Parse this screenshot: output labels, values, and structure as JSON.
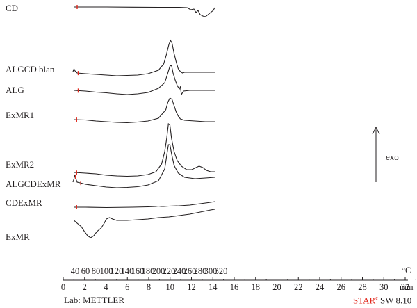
{
  "colors": {
    "ink": "#231f20",
    "marker": "#e0261b"
  },
  "chart_data": {
    "type": "line",
    "title": "",
    "y_direction_label": "exo",
    "temperature_axis": {
      "unit": "°C",
      "ticks": [
        40,
        60,
        80,
        100,
        120,
        140,
        160,
        180,
        200,
        220,
        240,
        260,
        280,
        300,
        320
      ],
      "range": [
        30,
        330
      ]
    },
    "time_axis": {
      "unit": "min",
      "ticks": [
        0,
        2,
        4,
        6,
        8,
        10,
        12,
        14,
        16,
        18,
        20,
        22,
        24,
        26,
        28,
        30,
        32
      ],
      "range": [
        0,
        33
      ]
    },
    "series": [
      {
        "name": "CD",
        "offset": 10,
        "points": [
          [
            38,
            0
          ],
          [
            60,
            0
          ],
          [
            100,
            0
          ],
          [
            150,
            -0.5
          ],
          [
            200,
            -1
          ],
          [
            225,
            -1
          ],
          [
            240,
            -1
          ],
          [
            255,
            -2
          ],
          [
            262,
            -8
          ],
          [
            268,
            -6
          ],
          [
            272,
            -16
          ],
          [
            276,
            -10
          ],
          [
            280,
            -22
          ],
          [
            285,
            -26
          ],
          [
            290,
            -28
          ],
          [
            295,
            -22
          ],
          [
            300,
            -16
          ],
          [
            305,
            -10
          ],
          [
            308,
            -2
          ]
        ]
      },
      {
        "name": "ALGCD blan",
        "offset": 104,
        "points": [
          [
            36,
            2
          ],
          [
            38,
            10
          ],
          [
            40,
            4
          ],
          [
            44,
            -2
          ],
          [
            60,
            -4
          ],
          [
            80,
            -6
          ],
          [
            100,
            -8
          ],
          [
            120,
            -10
          ],
          [
            140,
            -9
          ],
          [
            160,
            -8
          ],
          [
            180,
            -4
          ],
          [
            200,
            6
          ],
          [
            210,
            24
          ],
          [
            215,
            50
          ],
          [
            220,
            80
          ],
          [
            223,
            92
          ],
          [
            226,
            84
          ],
          [
            230,
            54
          ],
          [
            234,
            30
          ],
          [
            238,
            10
          ],
          [
            242,
            2
          ],
          [
            246,
            -2
          ],
          [
            250,
            0
          ],
          [
            270,
            0
          ],
          [
            300,
            0
          ],
          [
            308,
            0
          ]
        ]
      },
      {
        "name": "ALG",
        "offset": 130,
        "points": [
          [
            38,
            0
          ],
          [
            60,
            -2
          ],
          [
            80,
            -5
          ],
          [
            100,
            -7
          ],
          [
            120,
            -10
          ],
          [
            140,
            -12
          ],
          [
            160,
            -10
          ],
          [
            180,
            -6
          ],
          [
            200,
            6
          ],
          [
            212,
            22
          ],
          [
            218,
            50
          ],
          [
            222,
            70
          ],
          [
            225,
            72
          ],
          [
            228,
            50
          ],
          [
            232,
            30
          ],
          [
            236,
            14
          ],
          [
            240,
            4
          ],
          [
            242,
            10
          ],
          [
            244,
            -12
          ],
          [
            248,
            -2
          ],
          [
            260,
            0
          ],
          [
            280,
            0
          ],
          [
            300,
            0
          ],
          [
            308,
            0
          ]
        ]
      },
      {
        "name": "ExMR1",
        "offset": 172,
        "points": [
          [
            38,
            0
          ],
          [
            60,
            -1
          ],
          [
            80,
            -4
          ],
          [
            100,
            -6
          ],
          [
            120,
            -8
          ],
          [
            140,
            -9
          ],
          [
            160,
            -7
          ],
          [
            180,
            -4
          ],
          [
            200,
            4
          ],
          [
            214,
            28
          ],
          [
            218,
            50
          ],
          [
            222,
            62
          ],
          [
            226,
            58
          ],
          [
            230,
            40
          ],
          [
            234,
            22
          ],
          [
            238,
            10
          ],
          [
            242,
            2
          ],
          [
            250,
            -2
          ],
          [
            270,
            -4
          ],
          [
            290,
            -6
          ],
          [
            308,
            -6
          ]
        ]
      },
      {
        "name": "ExMR2",
        "offset": 248,
        "points": [
          [
            38,
            0
          ],
          [
            60,
            -2
          ],
          [
            80,
            -4
          ],
          [
            100,
            -8
          ],
          [
            120,
            -10
          ],
          [
            140,
            -11
          ],
          [
            160,
            -10
          ],
          [
            180,
            -6
          ],
          [
            195,
            2
          ],
          [
            206,
            24
          ],
          [
            212,
            60
          ],
          [
            216,
            100
          ],
          [
            219,
            140
          ],
          [
            222,
            136
          ],
          [
            225,
            98
          ],
          [
            230,
            60
          ],
          [
            236,
            34
          ],
          [
            244,
            18
          ],
          [
            254,
            8
          ],
          [
            264,
            8
          ],
          [
            272,
            14
          ],
          [
            278,
            18
          ],
          [
            285,
            14
          ],
          [
            292,
            6
          ],
          [
            300,
            2
          ],
          [
            308,
            2
          ]
        ]
      },
      {
        "name": "ALGCDExMR",
        "offset": 263,
        "points": [
          [
            36,
            2
          ],
          [
            38,
            12
          ],
          [
            40,
            24
          ],
          [
            42,
            10
          ],
          [
            44,
            2
          ],
          [
            50,
            0
          ],
          [
            60,
            -4
          ],
          [
            80,
            -8
          ],
          [
            100,
            -12
          ],
          [
            120,
            -14
          ],
          [
            140,
            -13
          ],
          [
            160,
            -11
          ],
          [
            180,
            -6
          ],
          [
            200,
            6
          ],
          [
            212,
            40
          ],
          [
            216,
            80
          ],
          [
            219,
            110
          ],
          [
            222,
            110
          ],
          [
            225,
            84
          ],
          [
            230,
            50
          ],
          [
            238,
            28
          ],
          [
            250,
            16
          ],
          [
            270,
            12
          ],
          [
            290,
            14
          ],
          [
            308,
            16
          ]
        ]
      },
      {
        "name": "CDExMR",
        "offset": 298,
        "points": [
          [
            38,
            0
          ],
          [
            60,
            0
          ],
          [
            100,
            -1
          ],
          [
            150,
            0
          ],
          [
            180,
            1
          ],
          [
            195,
            2
          ],
          [
            200,
            3
          ],
          [
            205,
            2
          ],
          [
            210,
            2
          ],
          [
            220,
            3
          ],
          [
            240,
            4
          ],
          [
            260,
            6
          ],
          [
            280,
            10
          ],
          [
            300,
            14
          ],
          [
            308,
            16
          ]
        ]
      },
      {
        "name": "ExMR",
        "offset": 318,
        "points": [
          [
            38,
            2
          ],
          [
            44,
            -6
          ],
          [
            52,
            -16
          ],
          [
            58,
            -30
          ],
          [
            64,
            -42
          ],
          [
            70,
            -48
          ],
          [
            76,
            -42
          ],
          [
            82,
            -30
          ],
          [
            90,
            -20
          ],
          [
            96,
            -6
          ],
          [
            100,
            6
          ],
          [
            106,
            10
          ],
          [
            112,
            6
          ],
          [
            120,
            2
          ],
          [
            140,
            2
          ],
          [
            160,
            4
          ],
          [
            180,
            6
          ],
          [
            200,
            10
          ],
          [
            220,
            12
          ],
          [
            240,
            16
          ],
          [
            260,
            20
          ],
          [
            280,
            26
          ],
          [
            300,
            32
          ],
          [
            308,
            34
          ]
        ]
      }
    ],
    "markers": [
      {
        "series": "CD",
        "temp": 44
      },
      {
        "series": "ALGCD blan",
        "temp": 46
      },
      {
        "series": "ALG",
        "temp": 46
      },
      {
        "series": "ExMR1",
        "temp": 43
      },
      {
        "series": "ExMR2",
        "temp": 43
      },
      {
        "series": "ALGCDExMR",
        "temp": 41
      },
      {
        "series": "ALGCDExMR",
        "temp": 51
      },
      {
        "series": "CDExMR",
        "temp": 43
      }
    ]
  },
  "footer": {
    "lab": "Lab: METTLER",
    "software_brand": "STAR",
    "software_sup": "e",
    "software_version": " SW 8.10"
  }
}
